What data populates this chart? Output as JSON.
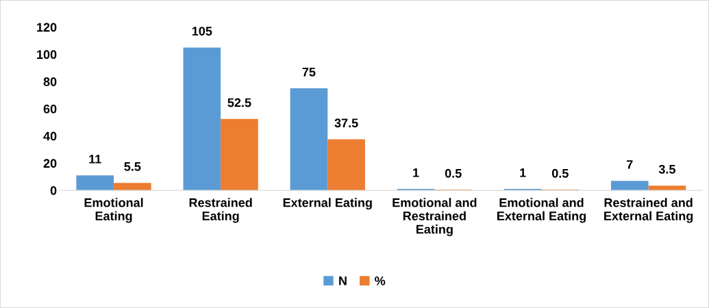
{
  "chart_data": {
    "type": "bar",
    "categories": [
      "Emotional\nEating",
      "Restrained\nEating",
      "External Eating",
      "Emotional and\nRestrained\nEating",
      "Emotional and\nExternal Eating",
      "Restrained and\nExternal Eating"
    ],
    "series": [
      {
        "name": "N",
        "color": "#5b9bd5",
        "values": [
          11,
          105,
          75,
          1,
          1,
          7
        ]
      },
      {
        "name": "%",
        "color": "#ed7d31",
        "values": [
          5.5,
          52.5,
          37.5,
          0.5,
          0.5,
          3.5
        ]
      }
    ],
    "ylim": [
      0,
      120
    ],
    "yticks": [
      0,
      20,
      40,
      60,
      80,
      100,
      120
    ],
    "data_labels": true,
    "grid": false,
    "legend": "bottom"
  }
}
